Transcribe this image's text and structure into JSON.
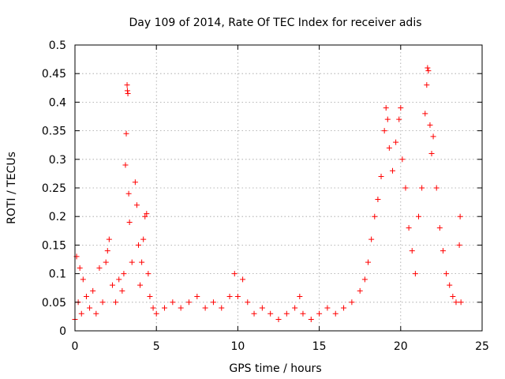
{
  "chart_data": {
    "type": "scatter",
    "title": "Day 109 of 2014, Rate Of TEC Index for receiver adis",
    "xlabel": "GPS time / hours",
    "ylabel": "ROTI / TECUs",
    "xlim": [
      0,
      25
    ],
    "ylim": [
      0,
      0.5
    ],
    "x_ticks": [
      "0",
      "5",
      "10",
      "15",
      "20",
      "25"
    ],
    "y_ticks": [
      "0",
      "0.05",
      "0.1",
      "0.15",
      "0.2",
      "0.25",
      "0.3",
      "0.35",
      "0.4",
      "0.45",
      "0.5"
    ],
    "grid": true,
    "marker": "+",
    "color": "#ff0000",
    "series": [
      {
        "name": "",
        "points": [
          [
            0.0,
            0.02
          ],
          [
            0.1,
            0.13
          ],
          [
            0.2,
            0.05
          ],
          [
            0.3,
            0.11
          ],
          [
            0.4,
            0.03
          ],
          [
            0.5,
            0.09
          ],
          [
            0.7,
            0.06
          ],
          [
            0.9,
            0.04
          ],
          [
            1.1,
            0.07
          ],
          [
            1.3,
            0.03
          ],
          [
            1.5,
            0.11
          ],
          [
            1.7,
            0.05
          ],
          [
            1.9,
            0.12
          ],
          [
            2.0,
            0.14
          ],
          [
            2.1,
            0.16
          ],
          [
            2.3,
            0.08
          ],
          [
            2.5,
            0.05
          ],
          [
            2.7,
            0.09
          ],
          [
            2.9,
            0.07
          ],
          [
            3.0,
            0.1
          ],
          [
            3.1,
            0.29
          ],
          [
            3.15,
            0.345
          ],
          [
            3.2,
            0.43
          ],
          [
            3.22,
            0.42
          ],
          [
            3.25,
            0.415
          ],
          [
            3.3,
            0.24
          ],
          [
            3.35,
            0.19
          ],
          [
            3.5,
            0.12
          ],
          [
            3.7,
            0.26
          ],
          [
            3.8,
            0.22
          ],
          [
            3.9,
            0.15
          ],
          [
            4.0,
            0.08
          ],
          [
            4.1,
            0.12
          ],
          [
            4.2,
            0.16
          ],
          [
            4.3,
            0.2
          ],
          [
            4.4,
            0.205
          ],
          [
            4.5,
            0.1
          ],
          [
            4.6,
            0.06
          ],
          [
            4.8,
            0.04
          ],
          [
            5.0,
            0.03
          ],
          [
            5.5,
            0.04
          ],
          [
            6.0,
            0.05
          ],
          [
            6.5,
            0.04
          ],
          [
            7.0,
            0.05
          ],
          [
            7.5,
            0.06
          ],
          [
            8.0,
            0.04
          ],
          [
            8.5,
            0.05
          ],
          [
            9.0,
            0.04
          ],
          [
            9.5,
            0.06
          ],
          [
            9.8,
            0.1
          ],
          [
            10.0,
            0.06
          ],
          [
            10.3,
            0.09
          ],
          [
            10.6,
            0.05
          ],
          [
            11.0,
            0.03
          ],
          [
            11.5,
            0.04
          ],
          [
            12.0,
            0.03
          ],
          [
            12.5,
            0.02
          ],
          [
            13.0,
            0.03
          ],
          [
            13.5,
            0.04
          ],
          [
            13.8,
            0.06
          ],
          [
            14.0,
            0.03
          ],
          [
            14.5,
            0.02
          ],
          [
            15.0,
            0.03
          ],
          [
            15.5,
            0.04
          ],
          [
            16.0,
            0.03
          ],
          [
            16.5,
            0.04
          ],
          [
            17.0,
            0.05
          ],
          [
            17.5,
            0.07
          ],
          [
            17.8,
            0.09
          ],
          [
            18.0,
            0.12
          ],
          [
            18.2,
            0.16
          ],
          [
            18.4,
            0.2
          ],
          [
            18.6,
            0.23
          ],
          [
            18.8,
            0.27
          ],
          [
            19.0,
            0.35
          ],
          [
            19.1,
            0.39
          ],
          [
            19.2,
            0.37
          ],
          [
            19.3,
            0.32
          ],
          [
            19.5,
            0.28
          ],
          [
            19.7,
            0.33
          ],
          [
            19.9,
            0.37
          ],
          [
            20.0,
            0.39
          ],
          [
            20.1,
            0.3
          ],
          [
            20.3,
            0.25
          ],
          [
            20.5,
            0.18
          ],
          [
            20.7,
            0.14
          ],
          [
            20.9,
            0.1
          ],
          [
            21.1,
            0.2
          ],
          [
            21.3,
            0.25
          ],
          [
            21.5,
            0.38
          ],
          [
            21.6,
            0.43
          ],
          [
            21.65,
            0.46
          ],
          [
            21.7,
            0.455
          ],
          [
            21.8,
            0.36
          ],
          [
            21.9,
            0.31
          ],
          [
            22.0,
            0.34
          ],
          [
            22.2,
            0.25
          ],
          [
            22.4,
            0.18
          ],
          [
            22.6,
            0.14
          ],
          [
            22.8,
            0.1
          ],
          [
            23.0,
            0.08
          ],
          [
            23.2,
            0.06
          ],
          [
            23.4,
            0.05
          ],
          [
            23.6,
            0.15
          ],
          [
            23.65,
            0.2
          ],
          [
            23.7,
            0.05
          ]
        ]
      }
    ]
  }
}
